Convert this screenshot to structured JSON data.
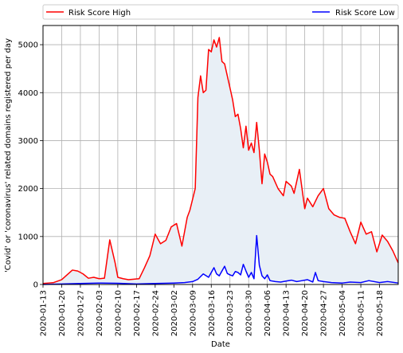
{
  "chart_data": {
    "type": "line",
    "xlabel": "Date",
    "ylabel": "'Covid' or 'coronavirus' related domains registered per day",
    "x_range": [
      "2020-01-13",
      "2020-05-25"
    ],
    "ylim": [
      0,
      5400
    ],
    "grid": true,
    "legend_placement": "top (above plot, spanning width)",
    "x_ticks": [
      "2020-01-13",
      "2020-01-20",
      "2020-01-27",
      "2020-02-03",
      "2020-02-10",
      "2020-02-17",
      "2020-02-24",
      "2020-03-02",
      "2020-03-09",
      "2020-03-16",
      "2020-03-23",
      "2020-03-30",
      "2020-04-06",
      "2020-04-13",
      "2020-04-20",
      "2020-04-27",
      "2020-05-04",
      "2020-05-11",
      "2020-05-18"
    ],
    "y_ticks": [
      "0",
      "1000",
      "2000",
      "3000",
      "4000",
      "5000"
    ],
    "fill_color": "#e8eff6",
    "series": [
      {
        "name": "Risk Score High",
        "color": "#ff0000",
        "x": [
          "2020-01-13",
          "2020-01-15",
          "2020-01-17",
          "2020-01-19",
          "2020-01-20",
          "2020-01-22",
          "2020-01-24",
          "2020-01-26",
          "2020-01-28",
          "2020-01-30",
          "2020-02-01",
          "2020-02-03",
          "2020-02-05",
          "2020-02-07",
          "2020-02-09",
          "2020-02-10",
          "2020-02-12",
          "2020-02-14",
          "2020-02-16",
          "2020-02-18",
          "2020-02-20",
          "2020-02-22",
          "2020-02-24",
          "2020-02-26",
          "2020-02-28",
          "2020-03-01",
          "2020-03-03",
          "2020-03-05",
          "2020-03-07",
          "2020-03-08",
          "2020-03-10",
          "2020-03-11",
          "2020-03-12",
          "2020-03-13",
          "2020-03-14",
          "2020-03-15",
          "2020-03-16",
          "2020-03-17",
          "2020-03-18",
          "2020-03-19",
          "2020-03-20",
          "2020-03-21",
          "2020-03-22",
          "2020-03-23",
          "2020-03-24",
          "2020-03-25",
          "2020-03-26",
          "2020-03-27",
          "2020-03-28",
          "2020-03-29",
          "2020-03-30",
          "2020-03-31",
          "2020-04-01",
          "2020-04-02",
          "2020-04-03",
          "2020-04-04",
          "2020-04-05",
          "2020-04-06",
          "2020-04-07",
          "2020-04-08",
          "2020-04-10",
          "2020-04-12",
          "2020-04-13",
          "2020-04-15",
          "2020-04-16",
          "2020-04-18",
          "2020-04-20",
          "2020-04-21",
          "2020-04-23",
          "2020-04-25",
          "2020-04-27",
          "2020-04-29",
          "2020-05-01",
          "2020-05-03",
          "2020-05-05",
          "2020-05-07",
          "2020-05-09",
          "2020-05-11",
          "2020-05-13",
          "2020-05-15",
          "2020-05-17",
          "2020-05-19",
          "2020-05-21",
          "2020-05-23",
          "2020-05-25"
        ],
        "values": [
          20,
          30,
          40,
          80,
          100,
          200,
          300,
          280,
          220,
          130,
          150,
          120,
          130,
          930,
          450,
          150,
          120,
          100,
          110,
          120,
          350,
          600,
          1050,
          850,
          920,
          1200,
          1270,
          800,
          1400,
          1550,
          2000,
          3900,
          4350,
          4000,
          4050,
          4900,
          4850,
          5100,
          4950,
          5150,
          4650,
          4600,
          4350,
          4100,
          3850,
          3500,
          3550,
          3250,
          2850,
          3300,
          2800,
          2950,
          2750,
          3380,
          2800,
          2100,
          2720,
          2550,
          2300,
          2250,
          2000,
          1850,
          2150,
          2050,
          1900,
          2400,
          1580,
          1800,
          1620,
          1850,
          2000,
          1580,
          1450,
          1400,
          1380,
          1100,
          850,
          1300,
          1050,
          1100,
          680,
          1030,
          900,
          700,
          450
        ]
      },
      {
        "name": "Risk Score Low",
        "color": "#0000ff",
        "x": [
          "2020-01-13",
          "2020-01-20",
          "2020-01-27",
          "2020-02-03",
          "2020-02-10",
          "2020-02-17",
          "2020-02-24",
          "2020-03-02",
          "2020-03-06",
          "2020-03-09",
          "2020-03-11",
          "2020-03-13",
          "2020-03-15",
          "2020-03-16",
          "2020-03-17",
          "2020-03-18",
          "2020-03-19",
          "2020-03-20",
          "2020-03-21",
          "2020-03-22",
          "2020-03-23",
          "2020-03-24",
          "2020-03-25",
          "2020-03-26",
          "2020-03-27",
          "2020-03-28",
          "2020-03-29",
          "2020-03-30",
          "2020-03-31",
          "2020-04-01",
          "2020-04-02",
          "2020-04-03",
          "2020-04-04",
          "2020-04-05",
          "2020-04-06",
          "2020-04-07",
          "2020-04-09",
          "2020-04-11",
          "2020-04-13",
          "2020-04-15",
          "2020-04-17",
          "2020-04-19",
          "2020-04-21",
          "2020-04-23",
          "2020-04-24",
          "2020-04-25",
          "2020-04-27",
          "2020-04-30",
          "2020-05-04",
          "2020-05-07",
          "2020-05-11",
          "2020-05-14",
          "2020-05-18",
          "2020-05-21",
          "2020-05-25"
        ],
        "values": [
          0,
          10,
          20,
          30,
          25,
          10,
          20,
          30,
          40,
          60,
          110,
          220,
          150,
          250,
          350,
          220,
          180,
          280,
          380,
          230,
          200,
          180,
          270,
          250,
          200,
          420,
          280,
          150,
          250,
          120,
          1020,
          400,
          180,
          120,
          200,
          80,
          60,
          50,
          70,
          90,
          60,
          80,
          100,
          50,
          250,
          80,
          60,
          40,
          30,
          50,
          40,
          80,
          40,
          60,
          30
        ]
      }
    ]
  }
}
